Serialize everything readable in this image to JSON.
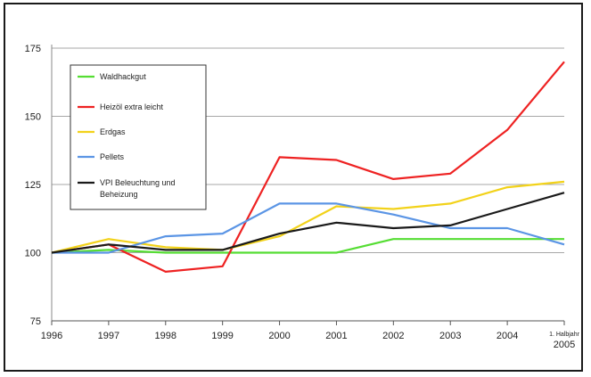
{
  "chart_data": {
    "type": "line",
    "title": "",
    "xlabel": "",
    "ylabel": "",
    "x": [
      "1996",
      "1997",
      "1998",
      "1999",
      "2000",
      "2001",
      "2002",
      "2003",
      "2004",
      "1. Halbjahr 2005"
    ],
    "ylim": [
      75,
      175
    ],
    "yticks": [
      75,
      100,
      125,
      150,
      175
    ],
    "grid": "horizontal",
    "legend_position": "top-left",
    "series": [
      {
        "name": "Waldhackgut",
        "color": "#55dd33",
        "values": [
          100,
          101,
          100,
          100,
          100,
          100,
          105,
          105,
          105,
          105
        ]
      },
      {
        "name": "Heizöl extra leicht",
        "color": "#ee2222",
        "values": [
          100,
          103,
          93,
          95,
          135,
          134,
          127,
          129,
          145,
          170
        ]
      },
      {
        "name": "Erdgas",
        "color": "#f2d21a",
        "values": [
          100,
          105,
          102,
          101,
          106,
          117,
          116,
          118,
          124,
          126
        ]
      },
      {
        "name": "Pellets",
        "color": "#5b95e5",
        "values": [
          100,
          100,
          106,
          107,
          118,
          118,
          114,
          109,
          109,
          103
        ]
      },
      {
        "name": "VPI Beleuchtung und Beheizung",
        "color": "#1a1a1a",
        "values": [
          100,
          103,
          101,
          101,
          107,
          111,
          109,
          110,
          116,
          122
        ]
      }
    ]
  }
}
